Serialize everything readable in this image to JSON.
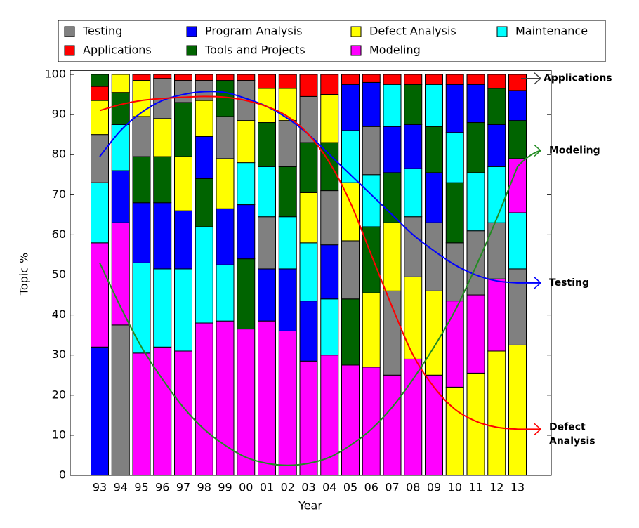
{
  "chart_data": {
    "type": "stacked_bar",
    "x_label": "Year",
    "y_label": "Topic %",
    "categories": [
      "93",
      "94",
      "95",
      "96",
      "97",
      "98",
      "99",
      "00",
      "01",
      "02",
      "03",
      "04",
      "05",
      "06",
      "07",
      "08",
      "09",
      "10",
      "11",
      "12",
      "13"
    ],
    "series": [
      {
        "name": "Testing",
        "color": "#808080",
        "values": [
          12,
          37.5,
          10,
          10,
          5.5,
          5,
          10.5,
          10,
          13,
          11.5,
          11.5,
          13.5,
          14.5,
          12,
          21,
          15,
          17,
          14.5,
          16,
          14,
          19
        ]
      },
      {
        "name": "Applications",
        "color": "#ff0000",
        "values": [
          3.5,
          0,
          1.5,
          1,
          1.5,
          1.5,
          1.5,
          1.5,
          3.5,
          3.5,
          5.5,
          5,
          2.5,
          2,
          2.5,
          2.5,
          2.5,
          2.5,
          2.5,
          3.5,
          4
        ]
      },
      {
        "name": "Program Analysis",
        "color": "#0000ff",
        "values": [
          32,
          13,
          15,
          16.5,
          14.5,
          10.5,
          14,
          13.5,
          13,
          15.5,
          15,
          13.5,
          11.5,
          11,
          11.5,
          11,
          12.5,
          12,
          9.5,
          10.5,
          7.5
        ]
      },
      {
        "name": "Tools and Projects",
        "color": "#006400",
        "values": [
          3,
          8,
          11.5,
          11.5,
          13.5,
          12,
          9,
          17.5,
          11,
          12.5,
          12.5,
          12,
          16.5,
          16.5,
          12.5,
          10,
          11.5,
          15,
          12.5,
          9,
          9.5
        ]
      },
      {
        "name": "Defect Analysis",
        "color": "#ffff00",
        "values": [
          8.5,
          4.5,
          9,
          9.5,
          13.5,
          9,
          12.5,
          10.5,
          8.5,
          8,
          12.5,
          12,
          14.5,
          18.5,
          17,
          20.5,
          21,
          22,
          25.5,
          31,
          32.5
        ]
      },
      {
        "name": "Modeling",
        "color": "#ff00ff",
        "values": [
          26,
          25.5,
          30.5,
          32,
          31,
          38,
          38.5,
          36.5,
          38.5,
          36,
          28.5,
          30,
          27.5,
          27,
          25,
          29,
          25,
          21.5,
          19.5,
          18,
          13.5
        ]
      },
      {
        "name": "Maintenance",
        "color": "#00ffff",
        "values": [
          15,
          11.5,
          22.5,
          19.5,
          20.5,
          24,
          14,
          10.5,
          12.5,
          13,
          14.5,
          14,
          13,
          13,
          10.5,
          12,
          10.5,
          12.5,
          14.5,
          14,
          14
        ]
      }
    ],
    "stack_order": [
      [
        2,
        5,
        6,
        0,
        4,
        1,
        3
      ],
      [
        0,
        5,
        2,
        6,
        3,
        4,
        1
      ],
      [
        5,
        6,
        2,
        3,
        0,
        4,
        1
      ],
      [
        5,
        6,
        2,
        3,
        4,
        0,
        1
      ],
      [
        5,
        6,
        2,
        4,
        3,
        0,
        1
      ],
      [
        5,
        6,
        3,
        2,
        4,
        0,
        1
      ],
      [
        5,
        6,
        2,
        4,
        0,
        3,
        1
      ],
      [
        5,
        3,
        2,
        6,
        4,
        0,
        1
      ],
      [
        5,
        2,
        0,
        6,
        3,
        4,
        1
      ],
      [
        5,
        2,
        6,
        3,
        0,
        4,
        1
      ],
      [
        5,
        2,
        6,
        4,
        3,
        0,
        1
      ],
      [
        5,
        6,
        2,
        0,
        3,
        4,
        1
      ],
      [
        5,
        3,
        0,
        4,
        6,
        2,
        1
      ],
      [
        5,
        4,
        3,
        6,
        0,
        2,
        1
      ],
      [
        5,
        0,
        4,
        3,
        2,
        6,
        1
      ],
      [
        5,
        4,
        0,
        6,
        2,
        3,
        1
      ],
      [
        5,
        4,
        0,
        2,
        3,
        6,
        1
      ],
      [
        4,
        5,
        0,
        3,
        6,
        2,
        1
      ],
      [
        4,
        5,
        0,
        6,
        3,
        2,
        1
      ],
      [
        4,
        5,
        0,
        6,
        2,
        3,
        1
      ],
      [
        4,
        0,
        6,
        5,
        3,
        2,
        1
      ]
    ],
    "trends": [
      {
        "label": [
          "Testing"
        ],
        "color": "#0000ff",
        "values": [
          79.5,
          86,
          90.5,
          93.5,
          95,
          95.7,
          95.5,
          94,
          92,
          89,
          85,
          80,
          75,
          70,
          65,
          60,
          56,
          52.5,
          50,
          48.5,
          48
        ],
        "end": 48
      },
      {
        "label": [
          "Defect",
          "Analysis"
        ],
        "color": "#ff0000",
        "values": [
          91,
          92.5,
          93.5,
          94,
          94.3,
          94.5,
          94.3,
          93.5,
          92,
          89.5,
          85,
          78,
          68,
          55,
          42,
          30,
          22,
          16.5,
          13.5,
          12,
          11.5
        ],
        "end": 11.5
      },
      {
        "label": [
          "Modeling"
        ],
        "color": "#228b22",
        "values": [
          53,
          42,
          32,
          24,
          17,
          11.5,
          7.5,
          4.5,
          3,
          2.5,
          3,
          4.5,
          7.5,
          11.5,
          17,
          24,
          32,
          41,
          52,
          64,
          77
        ],
        "end": 81
      }
    ],
    "annotations": [
      {
        "text": "Applications",
        "y": 99,
        "color": "#404040"
      }
    ],
    "ylim": [
      0,
      101
    ],
    "yticks": [
      0,
      10,
      20,
      30,
      40,
      50,
      60,
      70,
      80,
      90,
      100
    ]
  }
}
